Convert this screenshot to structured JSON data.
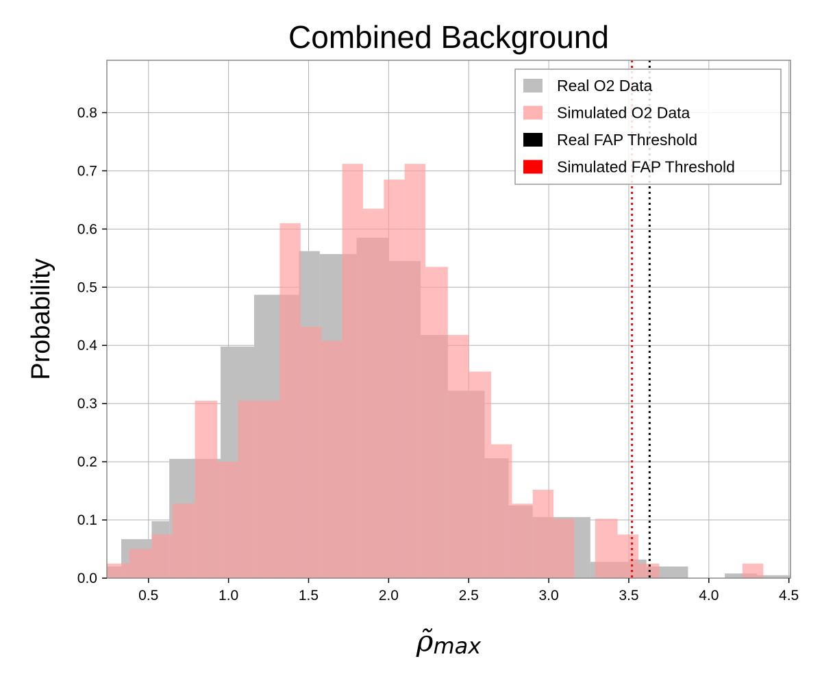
{
  "chart_data": {
    "type": "bar",
    "title": "Combined Background",
    "xlabel": {
      "symbol": "ρ̃",
      "subscript": "max"
    },
    "ylabel": "Probability",
    "xlim": [
      0.24,
      4.51
    ],
    "ylim": [
      0,
      0.89
    ],
    "xticks": [
      0.5,
      1.0,
      1.5,
      2.0,
      2.5,
      3.0,
      3.5,
      4.0,
      4.5
    ],
    "xtick_labels": [
      "0.5",
      "1.0",
      "1.5",
      "2.0",
      "2.5",
      "3.0",
      "3.5",
      "4.0",
      "4.5"
    ],
    "yticks": [
      0.0,
      0.1,
      0.2,
      0.3,
      0.4,
      0.5,
      0.6,
      0.7,
      0.8
    ],
    "ytick_labels": [
      "0.0",
      "0.1",
      "0.2",
      "0.3",
      "0.4",
      "0.5",
      "0.6",
      "0.7",
      "0.8"
    ],
    "grid": true,
    "legend_position": "top-right",
    "series": [
      {
        "name": "Real O2 Data",
        "color": "#bfbfbf",
        "bins": [
          [
            0.24,
            0.33,
            0.02
          ],
          [
            0.33,
            0.52,
            0.067
          ],
          [
            0.52,
            0.63,
            0.098
          ],
          [
            0.63,
            0.8,
            0.205
          ],
          [
            0.8,
            0.95,
            0.205
          ],
          [
            0.95,
            1.16,
            0.398
          ],
          [
            1.16,
            1.44,
            0.487
          ],
          [
            1.44,
            1.57,
            0.562
          ],
          [
            1.57,
            1.8,
            0.557
          ],
          [
            1.8,
            2.0,
            0.585
          ],
          [
            2.0,
            2.2,
            0.545
          ],
          [
            2.2,
            2.37,
            0.418
          ],
          [
            2.37,
            2.6,
            0.322
          ],
          [
            2.6,
            2.75,
            0.206
          ],
          [
            2.75,
            2.9,
            0.125
          ],
          [
            2.9,
            3.16,
            0.105
          ],
          [
            3.16,
            3.26,
            0.105
          ],
          [
            3.26,
            3.5,
            0.028
          ],
          [
            3.5,
            3.61,
            0.032
          ],
          [
            3.61,
            3.87,
            0.02
          ],
          [
            3.87,
            4.1,
            0.0
          ],
          [
            4.1,
            4.3,
            0.008
          ],
          [
            4.3,
            4.51,
            0.005
          ]
        ]
      },
      {
        "name": "Simulated O2 Data",
        "color": "#ff9999",
        "bins": [
          [
            0.24,
            0.31,
            0.025
          ],
          [
            0.31,
            0.38,
            0.025
          ],
          [
            0.38,
            0.52,
            0.05
          ],
          [
            0.52,
            0.59,
            0.075
          ],
          [
            0.59,
            0.65,
            0.075
          ],
          [
            0.65,
            0.79,
            0.128
          ],
          [
            0.79,
            0.93,
            0.305
          ],
          [
            0.93,
            1.06,
            0.2
          ],
          [
            1.06,
            1.2,
            0.305
          ],
          [
            1.2,
            1.32,
            0.305
          ],
          [
            1.32,
            1.45,
            0.61
          ],
          [
            1.45,
            1.58,
            0.432
          ],
          [
            1.58,
            1.71,
            0.408
          ],
          [
            1.71,
            1.84,
            0.712
          ],
          [
            1.84,
            1.97,
            0.635
          ],
          [
            1.97,
            2.1,
            0.685
          ],
          [
            2.1,
            2.23,
            0.712
          ],
          [
            2.23,
            2.37,
            0.535
          ],
          [
            2.37,
            2.5,
            0.418
          ],
          [
            2.5,
            2.64,
            0.355
          ],
          [
            2.64,
            2.77,
            0.23
          ],
          [
            2.77,
            2.9,
            0.128
          ],
          [
            2.9,
            3.03,
            0.152
          ],
          [
            3.03,
            3.16,
            0.102
          ],
          [
            3.16,
            3.29,
            0.0
          ],
          [
            3.29,
            3.43,
            0.102
          ],
          [
            3.43,
            3.56,
            0.075
          ],
          [
            3.56,
            3.69,
            0.025
          ],
          [
            3.69,
            4.08,
            0.0
          ],
          [
            4.08,
            4.21,
            0.0
          ],
          [
            4.21,
            4.34,
            0.025
          ],
          [
            4.34,
            4.51,
            0.0
          ]
        ]
      }
    ],
    "thresholds": [
      {
        "name": "Real FAP Threshold",
        "x": 3.63,
        "color": "#000000",
        "linestyle": "dotted"
      },
      {
        "name": "Simulated FAP Threshold",
        "x": 3.52,
        "color": "#ff0000",
        "linestyle": "dotted"
      }
    ],
    "legend": [
      {
        "label": "Real O2 Data",
        "color": "#bfbfbf"
      },
      {
        "label": "Simulated O2 Data",
        "color": "#ffb3b3"
      },
      {
        "label": "Real FAP Threshold",
        "color": "#000000"
      },
      {
        "label": "Simulated FAP Threshold",
        "color": "#ff0000"
      }
    ]
  }
}
